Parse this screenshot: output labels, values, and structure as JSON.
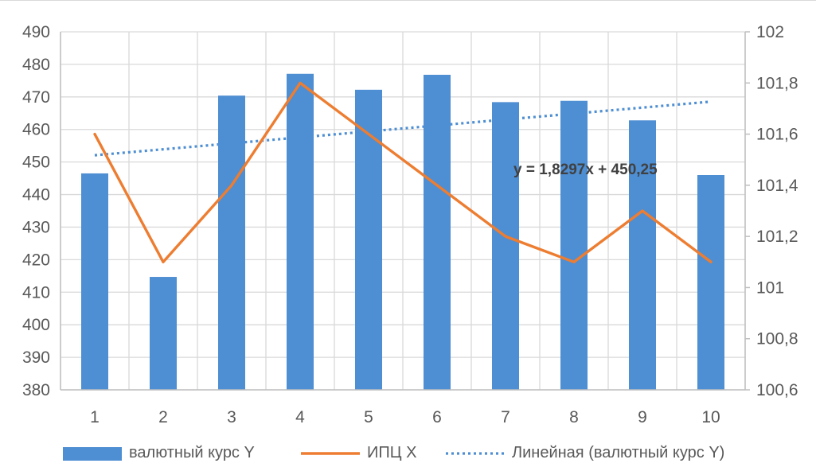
{
  "chart_data": {
    "type": "bar",
    "categories": [
      "1",
      "2",
      "3",
      "4",
      "5",
      "6",
      "7",
      "8",
      "9",
      "10"
    ],
    "series": [
      {
        "name": "валютный курс Y",
        "type": "bar",
        "axis": "left",
        "color": "#4e8ed2",
        "values": [
          446.5,
          414.7,
          470.4,
          477.1,
          472.2,
          476.8,
          468.4,
          468.8,
          462.8,
          446.0
        ]
      },
      {
        "name": "ИПЦ Х",
        "type": "line",
        "axis": "right",
        "color": "#ed7d31",
        "values": [
          101.6,
          101.1,
          101.4,
          101.8,
          101.6,
          101.4,
          101.2,
          101.1,
          101.3,
          101.1
        ]
      },
      {
        "name": "Линейная (валютный курс Y)",
        "type": "trendline",
        "axis": "left",
        "color": "#4e8ed2",
        "style": "dotted",
        "slope": 1.8297,
        "intercept": 450.25
      }
    ],
    "y_left": {
      "min": 380,
      "max": 490,
      "step": 10,
      "ticks": [
        "380",
        "390",
        "400",
        "410",
        "420",
        "430",
        "440",
        "450",
        "460",
        "470",
        "480",
        "490"
      ]
    },
    "y_right": {
      "min": 100.6,
      "max": 102,
      "step": 0.2,
      "ticks": [
        "100,6",
        "100,8",
        "101",
        "101,2",
        "101,4",
        "101,6",
        "101,8",
        "102"
      ]
    },
    "trendline_equation": "y = 1,8297x + 450,25",
    "grid": true,
    "legend_position": "bottom",
    "title": "",
    "xlabel": "",
    "ylabel": ""
  }
}
